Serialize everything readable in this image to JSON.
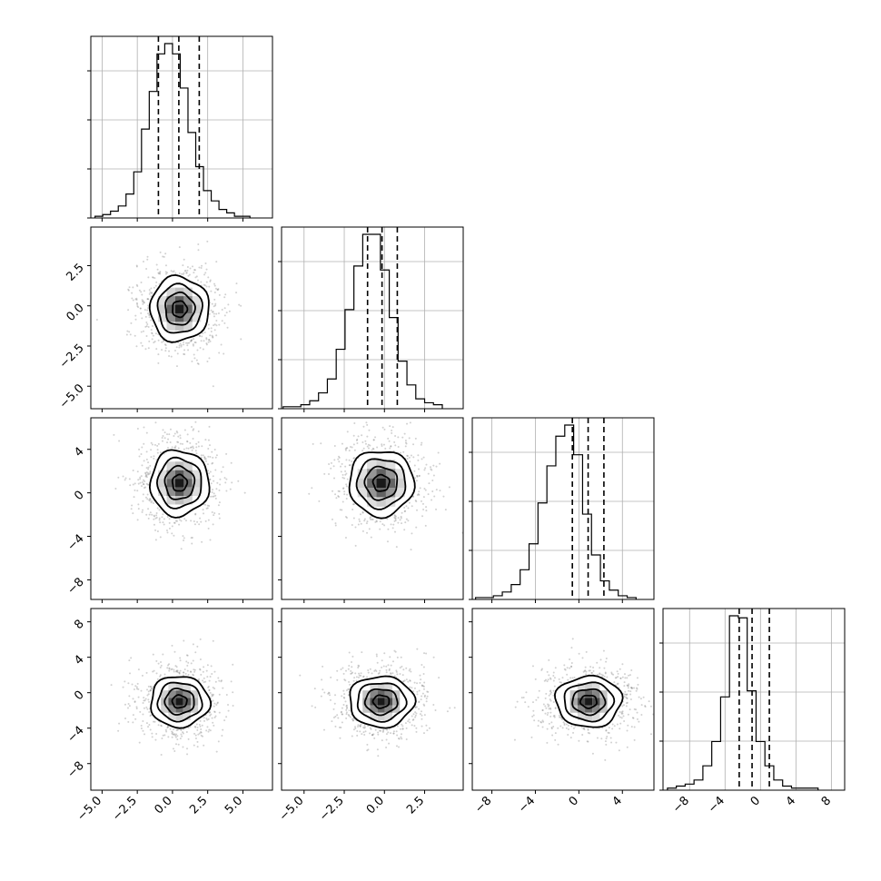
{
  "chart_data": {
    "type": "corner",
    "grid": true,
    "n_params": 4,
    "axis_ranges": [
      [
        -5.8,
        7.1
      ],
      [
        -6.4,
        4.9
      ],
      [
        -9.8,
        6.9
      ],
      [
        -11.0,
        9.5
      ]
    ],
    "bottom_tick_values": [
      [
        -5.0,
        -2.5,
        0.0,
        2.5,
        5.0
      ],
      [
        -5.0,
        -2.5,
        0.0,
        2.5
      ],
      [
        -8,
        -4,
        0,
        4
      ],
      [
        -8,
        -4,
        0,
        4,
        8
      ]
    ],
    "bottom_tick_labels": [
      [
        "−5.0",
        "−2.5",
        "0.0",
        "2.5",
        "5.0"
      ],
      [
        "−5.0",
        "−2.5",
        "0.0",
        "2.5"
      ],
      [
        "−8",
        "−4",
        "0",
        "4"
      ],
      [
        "−8",
        "−4",
        "0",
        "4",
        "8"
      ]
    ],
    "left_tick_labels": {
      "row1": [
        "2.5",
        "0.0",
        "−2.5",
        "−5.0"
      ],
      "row2": [
        "4",
        "0",
        "−4",
        "−8"
      ],
      "row3": [
        "8",
        "4",
        "0",
        "−4",
        "−8"
      ]
    },
    "left_tick_values": {
      "row1": [
        2.5,
        0.0,
        -2.5,
        -5.0
      ],
      "row2": [
        4,
        0,
        -4,
        -8
      ],
      "row3": [
        8,
        4,
        0,
        -4,
        -8
      ]
    },
    "quantiles": [
      [
        -1.0,
        0.45,
        1.9
      ],
      [
        -1.05,
        -0.15,
        0.8
      ],
      [
        -0.6,
        0.85,
        2.3
      ],
      [
        -2.4,
        -0.95,
        1.0
      ]
    ],
    "histograms": [
      {
        "bin_start": -5.5,
        "bin_width": 0.55,
        "counts": [
          1,
          2,
          4,
          7,
          14,
          27,
          52,
          74,
          96,
          102,
          96,
          76,
          50,
          30,
          16,
          10,
          5,
          3,
          1,
          1
        ]
      },
      {
        "bin_start": -6.3,
        "bin_width": 0.55,
        "counts": [
          1,
          1,
          2,
          4,
          8,
          15,
          30,
          50,
          72,
          88,
          88,
          70,
          46,
          24,
          12,
          5,
          3,
          2
        ]
      },
      {
        "bin_start": -9.5,
        "bin_width": 0.82,
        "counts": [
          1,
          1,
          2,
          4,
          8,
          16,
          30,
          52,
          72,
          88,
          94,
          78,
          46,
          24,
          10,
          5,
          2,
          1
        ]
      },
      {
        "bin_start": -10.5,
        "bin_width": 1.0,
        "counts": [
          1,
          2,
          3,
          5,
          12,
          24,
          46,
          86,
          85,
          49,
          24,
          12,
          5,
          2,
          1,
          1,
          1
        ]
      }
    ],
    "means": [
      0.5,
      -0.2,
      0.9,
      -1.0
    ],
    "sigmas": [
      1.45,
      1.4,
      2.1,
      2.0
    ],
    "contour_levels_sigma": [
      0.5,
      1.0,
      1.5,
      2.0
    ]
  }
}
